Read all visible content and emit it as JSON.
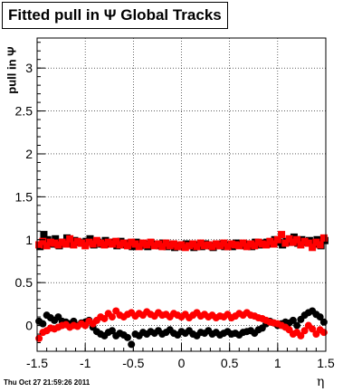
{
  "chart_data": {
    "type": "scatter",
    "title": "Fitted pull in  Ψ   Global Tracks",
    "ylabel": "pull in Ψ",
    "xlabel": "η",
    "footer": "Thu Oct 27 21:59:26 2011",
    "xlim": [
      -1.5,
      1.5
    ],
    "ylim": [
      -0.3,
      3.35
    ],
    "grid": true,
    "x_ticks": [
      "-1.5",
      "-1",
      "-0.5",
      "0",
      "0.5",
      "1",
      "1.5"
    ],
    "y_ticks": [
      "0",
      "0.5",
      "1",
      "1.5",
      "2",
      "2.5",
      "3"
    ],
    "colors": {
      "black": "#000000",
      "red": "#ff0000"
    },
    "series": [
      {
        "marker": "square",
        "color": "#000000",
        "x": [
          -1.47,
          -1.43,
          -1.39,
          -1.35,
          -1.31,
          -1.27,
          -1.23,
          -1.19,
          -1.15,
          -1.11,
          -1.07,
          -1.03,
          -0.99,
          -0.95,
          -0.91,
          -0.87,
          -0.83,
          -0.79,
          -0.75,
          -0.71,
          -0.67,
          -0.63,
          -0.59,
          -0.55,
          -0.51,
          -0.47,
          -0.43,
          -0.39,
          -0.35,
          -0.31,
          -0.27,
          -0.23,
          -0.19,
          -0.15,
          -0.11,
          -0.07,
          -0.03,
          0.01,
          0.05,
          0.09,
          0.13,
          0.17,
          0.21,
          0.25,
          0.29,
          0.33,
          0.37,
          0.41,
          0.45,
          0.49,
          0.53,
          0.57,
          0.61,
          0.65,
          0.69,
          0.73,
          0.77,
          0.81,
          0.85,
          0.89,
          0.93,
          0.97,
          1.01,
          1.05,
          1.09,
          1.13,
          1.17,
          1.21,
          1.25,
          1.29,
          1.33,
          1.37,
          1.41,
          1.45,
          1.49
        ],
        "values": [
          0.92,
          1.06,
          1.0,
          0.95,
          1.01,
          0.93,
          0.97,
          1.02,
          0.95,
          0.99,
          0.97,
          0.96,
          0.98,
          1.01,
          0.94,
          0.97,
          0.95,
          0.99,
          0.95,
          0.97,
          0.93,
          0.98,
          0.94,
          0.96,
          0.92,
          0.97,
          0.93,
          0.95,
          0.92,
          0.95,
          0.94,
          0.93,
          0.96,
          0.92,
          0.94,
          0.91,
          0.93,
          0.92,
          0.95,
          0.93,
          0.91,
          0.94,
          0.92,
          0.95,
          0.93,
          0.91,
          0.95,
          0.93,
          0.92,
          0.94,
          0.92,
          0.96,
          0.94,
          0.93,
          0.95,
          0.92,
          0.97,
          0.94,
          0.96,
          0.97,
          0.95,
          1.0,
          0.97,
          0.94,
          0.98,
          0.97,
          1.03,
          0.96,
          1.0,
          0.97,
          0.99,
          0.95,
          1.0,
          0.93,
          0.99
        ]
      },
      {
        "marker": "square",
        "color": "#ff0000",
        "x": [
          -1.48,
          -1.44,
          -1.4,
          -1.36,
          -1.32,
          -1.28,
          -1.24,
          -1.2,
          -1.16,
          -1.12,
          -1.08,
          -1.04,
          -1.0,
          -0.96,
          -0.92,
          -0.88,
          -0.84,
          -0.8,
          -0.76,
          -0.72,
          -0.68,
          -0.64,
          -0.6,
          -0.56,
          -0.52,
          -0.48,
          -0.44,
          -0.4,
          -0.36,
          -0.32,
          -0.28,
          -0.24,
          -0.2,
          -0.16,
          -0.12,
          -0.08,
          -0.04,
          0.0,
          0.04,
          0.08,
          0.12,
          0.16,
          0.2,
          0.24,
          0.28,
          0.32,
          0.36,
          0.4,
          0.44,
          0.48,
          0.52,
          0.56,
          0.6,
          0.64,
          0.68,
          0.72,
          0.76,
          0.8,
          0.84,
          0.88,
          0.92,
          0.96,
          1.0,
          1.04,
          1.08,
          1.12,
          1.16,
          1.2,
          1.24,
          1.28,
          1.32,
          1.36,
          1.4,
          1.44,
          1.48
        ],
        "values": [
          0.94,
          0.98,
          0.93,
          0.97,
          0.96,
          0.94,
          0.97,
          0.95,
          1.01,
          0.94,
          0.98,
          0.96,
          0.93,
          0.97,
          0.95,
          0.99,
          0.96,
          0.94,
          0.97,
          0.95,
          0.98,
          0.94,
          0.96,
          0.93,
          0.97,
          0.95,
          0.92,
          0.96,
          0.94,
          0.97,
          0.93,
          0.95,
          0.92,
          0.96,
          0.93,
          0.95,
          0.92,
          0.94,
          0.91,
          0.93,
          0.95,
          0.92,
          0.96,
          0.93,
          0.94,
          0.92,
          0.95,
          0.93,
          0.96,
          0.92,
          0.95,
          0.94,
          0.93,
          0.96,
          0.92,
          0.95,
          0.93,
          0.97,
          0.95,
          0.94,
          0.98,
          0.95,
          1.0,
          1.06,
          0.96,
          1.01,
          0.97,
          1.0,
          0.94,
          0.98,
          0.96,
          0.91,
          0.97,
          0.94,
          1.02
        ]
      },
      {
        "marker": "circle",
        "color": "#000000",
        "x": [
          -1.48,
          -1.44,
          -1.4,
          -1.36,
          -1.32,
          -1.28,
          -1.24,
          -1.2,
          -1.16,
          -1.12,
          -1.08,
          -1.04,
          -1.0,
          -0.96,
          -0.92,
          -0.88,
          -0.84,
          -0.8,
          -0.76,
          -0.72,
          -0.68,
          -0.64,
          -0.6,
          -0.56,
          -0.52,
          -0.48,
          -0.44,
          -0.4,
          -0.36,
          -0.32,
          -0.28,
          -0.24,
          -0.2,
          -0.16,
          -0.12,
          -0.08,
          -0.04,
          0.0,
          0.04,
          0.08,
          0.12,
          0.16,
          0.2,
          0.24,
          0.28,
          0.32,
          0.36,
          0.4,
          0.44,
          0.48,
          0.52,
          0.56,
          0.6,
          0.64,
          0.68,
          0.72,
          0.76,
          0.8,
          0.84,
          0.88,
          0.92,
          0.96,
          1.0,
          1.04,
          1.08,
          1.12,
          1.16,
          1.2,
          1.24,
          1.28,
          1.32,
          1.36,
          1.4,
          1.44,
          1.48
        ],
        "values": [
          0.05,
          0.02,
          0.12,
          0.09,
          0.06,
          0.1,
          0.05,
          0.04,
          0.02,
          0.05,
          0.0,
          0.03,
          0.04,
          0.06,
          -0.02,
          -0.07,
          -0.1,
          -0.12,
          -0.08,
          -0.06,
          -0.12,
          -0.09,
          -0.11,
          -0.14,
          -0.22,
          -0.1,
          -0.12,
          -0.08,
          -0.1,
          -0.07,
          -0.09,
          -0.06,
          -0.1,
          -0.08,
          -0.05,
          -0.09,
          -0.11,
          -0.07,
          -0.09,
          -0.06,
          -0.1,
          -0.12,
          -0.08,
          -0.09,
          -0.06,
          -0.1,
          -0.08,
          -0.11,
          -0.09,
          -0.07,
          -0.1,
          -0.09,
          -0.11,
          -0.08,
          -0.07,
          -0.06,
          -0.09,
          -0.05,
          -0.03,
          0.02,
          0.05,
          0.03,
          0.0,
          0.02,
          0.04,
          0.03,
          0.06,
          0.0,
          0.07,
          0.12,
          0.15,
          0.17,
          0.13,
          0.1,
          0.04
        ]
      },
      {
        "marker": "circle",
        "color": "#ff0000",
        "x": [
          -1.48,
          -1.44,
          -1.4,
          -1.36,
          -1.32,
          -1.28,
          -1.24,
          -1.2,
          -1.16,
          -1.12,
          -1.08,
          -1.04,
          -1.0,
          -0.96,
          -0.92,
          -0.88,
          -0.84,
          -0.8,
          -0.76,
          -0.72,
          -0.68,
          -0.64,
          -0.6,
          -0.56,
          -0.52,
          -0.48,
          -0.44,
          -0.4,
          -0.36,
          -0.32,
          -0.28,
          -0.24,
          -0.2,
          -0.16,
          -0.12,
          -0.08,
          -0.04,
          0.0,
          0.04,
          0.08,
          0.12,
          0.16,
          0.2,
          0.24,
          0.28,
          0.32,
          0.36,
          0.4,
          0.44,
          0.48,
          0.52,
          0.56,
          0.6,
          0.64,
          0.68,
          0.72,
          0.76,
          0.8,
          0.84,
          0.88,
          0.92,
          0.96,
          1.0,
          1.04,
          1.08,
          1.12,
          1.16,
          1.2,
          1.24,
          1.28,
          1.32,
          1.36,
          1.4,
          1.44,
          1.48
        ],
        "values": [
          -0.15,
          -0.08,
          -0.06,
          -0.03,
          -0.04,
          -0.02,
          0.0,
          0.01,
          -0.02,
          0.0,
          -0.01,
          0.02,
          0.0,
          0.05,
          0.02,
          0.06,
          0.1,
          0.08,
          0.14,
          0.1,
          0.17,
          0.12,
          0.1,
          0.13,
          0.15,
          0.11,
          0.14,
          0.12,
          0.16,
          0.13,
          0.11,
          0.15,
          0.12,
          0.13,
          0.1,
          0.14,
          0.12,
          0.1,
          0.13,
          0.09,
          0.12,
          0.15,
          0.11,
          0.13,
          0.1,
          0.12,
          0.09,
          0.11,
          0.1,
          0.13,
          0.09,
          0.11,
          0.14,
          0.12,
          0.15,
          0.12,
          0.11,
          0.09,
          0.08,
          0.06,
          0.04,
          0.03,
          0.02,
          0.0,
          -0.02,
          -0.05,
          -0.1,
          -0.08,
          -0.12,
          -0.06,
          0.0,
          -0.04,
          -0.1,
          -0.05,
          -0.08
        ]
      }
    ]
  }
}
